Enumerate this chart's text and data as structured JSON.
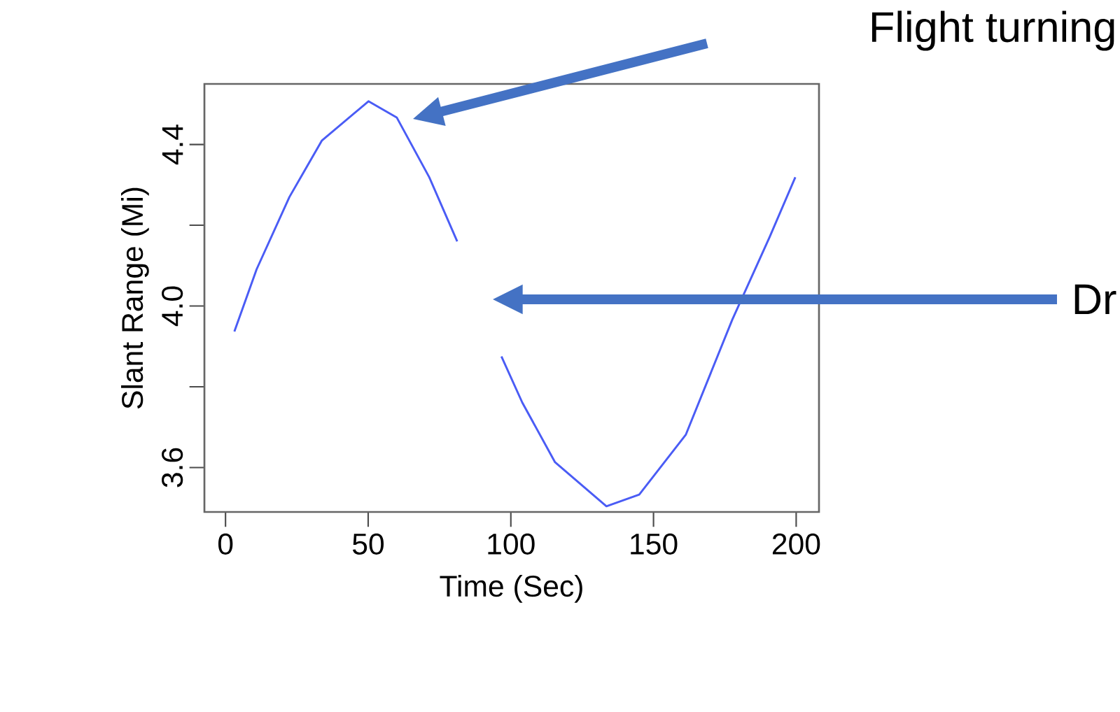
{
  "chart_data": {
    "type": "line",
    "xlabel": "Time (Sec)",
    "ylabel": "Slant Range (Mi)",
    "xlim": [
      -7.4,
      208
    ],
    "ylim": [
      3.49,
      4.55
    ],
    "xticks": [
      0,
      50,
      100,
      150,
      200
    ],
    "yticks": [
      {
        "value": 3.6,
        "label": "3.6"
      },
      {
        "value": 3.8,
        "label": null
      },
      {
        "value": 4.0,
        "label": "4.0"
      },
      {
        "value": 4.2,
        "label": null
      },
      {
        "value": 4.4,
        "label": "4.4"
      }
    ],
    "grid": false,
    "marker": "none",
    "line_style": "solid",
    "series": [
      {
        "color": "#4a5cf5",
        "x": [
          3.1,
          10.9,
          22.4,
          33.8,
          50.1,
          60,
          71.4,
          81.2,
          89,
          96.7,
          104,
          115.5,
          133.5,
          145,
          161.3,
          177.6,
          190.7,
          199.7
        ],
        "values": [
          3.937,
          4.091,
          4.27,
          4.41,
          4.507,
          4.467,
          4.319,
          4.16,
          null,
          3.875,
          3.761,
          3.613,
          3.504,
          3.533,
          3.681,
          3.966,
          4.171,
          4.319
        ]
      }
    ],
    "annotations": [
      "Flight turning",
      "Dr"
    ]
  }
}
